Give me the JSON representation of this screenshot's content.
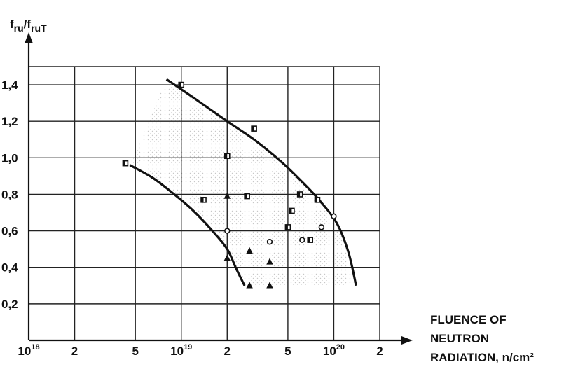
{
  "chart_data": {
    "type": "scatter",
    "title": "",
    "ylabel": {
      "main": "f",
      "sub1": "ru",
      "slash": "/f",
      "sub2": "ruT"
    },
    "xlabel_lines": [
      "FLUENCE  OF",
      "NEUTRON",
      "RADIATION, n/cm²"
    ],
    "x_scale": "log",
    "xlim": [
      1e+18,
      2e+20
    ],
    "ylim": [
      0.0,
      1.5
    ],
    "grid": true,
    "x_ticks": [
      {
        "value": 1e+18,
        "base": "10",
        "exp": "18"
      },
      {
        "value": 2e+18,
        "base": "2",
        "exp": ""
      },
      {
        "value": 5e+18,
        "base": "5",
        "exp": ""
      },
      {
        "value": 1e+19,
        "base": "10",
        "exp": "19"
      },
      {
        "value": 2e+19,
        "base": "2",
        "exp": ""
      },
      {
        "value": 5e+19,
        "base": "5",
        "exp": ""
      },
      {
        "value": 1e+20,
        "base": "10",
        "exp": "20"
      },
      {
        "value": 2e+20,
        "base": "2",
        "exp": ""
      }
    ],
    "y_ticks": [
      {
        "value": 0.2,
        "label": "0,2"
      },
      {
        "value": 0.4,
        "label": "0,4"
      },
      {
        "value": 0.6,
        "label": "0,6"
      },
      {
        "value": 0.8,
        "label": "0,8"
      },
      {
        "value": 1.0,
        "label": "1,0"
      },
      {
        "value": 1.2,
        "label": "1,2"
      },
      {
        "value": 1.4,
        "label": "1,4"
      }
    ],
    "curves": [
      {
        "points": [
          [
            8e+18,
            1.43
          ],
          [
            1.2e+19,
            1.33
          ],
          [
            2e+19,
            1.2
          ],
          [
            3e+19,
            1.1
          ],
          [
            4.5e+19,
            0.98
          ],
          [
            6e+19,
            0.88
          ],
          [
            8e+19,
            0.77
          ],
          [
            1.05e+20,
            0.64
          ],
          [
            1.25e+20,
            0.48
          ],
          [
            1.4e+20,
            0.3
          ]
        ]
      },
      {
        "points": [
          [
            4.6e+18,
            0.96
          ],
          [
            6.5e+18,
            0.89
          ],
          [
            9e+18,
            0.8
          ],
          [
            1.2e+19,
            0.71
          ],
          [
            1.6e+19,
            0.6
          ],
          [
            2e+19,
            0.5
          ],
          [
            2.3e+19,
            0.39
          ],
          [
            2.6e+19,
            0.3
          ]
        ]
      }
    ],
    "series": [
      {
        "marker": "square",
        "points": [
          [
            4.3e+18,
            0.97
          ],
          [
            1e+19,
            1.4
          ],
          [
            1.4e+19,
            0.77
          ],
          [
            2e+19,
            1.01
          ],
          [
            2.7e+19,
            0.79
          ],
          [
            3e+19,
            1.16
          ],
          [
            5.3e+19,
            0.71
          ],
          [
            5e+19,
            0.62
          ],
          [
            6e+19,
            0.8
          ],
          [
            7e+19,
            0.55
          ],
          [
            7.8e+19,
            0.77
          ]
        ]
      },
      {
        "marker": "circle",
        "points": [
          [
            2e+19,
            0.6
          ],
          [
            3.8e+19,
            0.54
          ],
          [
            6.2e+19,
            0.55
          ],
          [
            8.3e+19,
            0.62
          ],
          [
            1e+20,
            0.68
          ]
        ]
      },
      {
        "marker": "triangle",
        "points": [
          [
            2e+19,
            0.79
          ],
          [
            2e+19,
            0.45
          ],
          [
            2.8e+19,
            0.49
          ],
          [
            2.8e+19,
            0.3
          ],
          [
            3.8e+19,
            0.43
          ],
          [
            3.8e+19,
            0.3
          ]
        ]
      }
    ]
  }
}
